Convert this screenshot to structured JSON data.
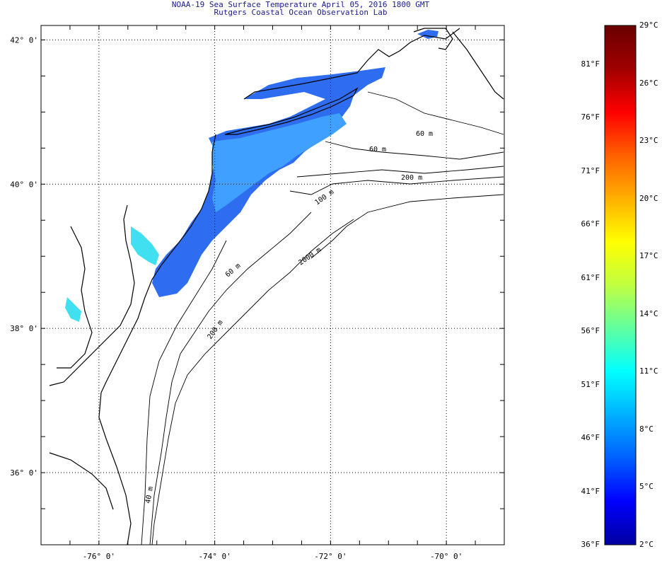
{
  "header": {
    "title": "NOAA-19 Sea Surface Temperature April 05, 2016 1800 GMT",
    "subtitle": "Rutgers Coastal Ocean Observation Lab"
  },
  "map": {
    "lat_labels": [
      "42° 0'",
      "40° 0'",
      "38° 0'",
      "36° 0'"
    ],
    "lat_values": [
      42,
      40,
      38,
      36
    ],
    "lon_labels": [
      "-76° 0'",
      "-74° 0'",
      "-72° 0'",
      "-70° 0'"
    ],
    "lon_values": [
      -76,
      -74,
      -72,
      -70
    ],
    "lat_range": [
      35,
      42.2
    ],
    "lon_range": [
      -77,
      -69
    ],
    "isobath_labels": [
      "60 m",
      "60 m",
      "200 m",
      "100 m",
      "2000 m",
      "60 m",
      "200 m",
      "40 m"
    ],
    "land_color": "#ffffff",
    "coast_color": "#000000",
    "grid": true
  },
  "colorbar": {
    "celsius_labels": [
      "29°C",
      "26°C",
      "23°C",
      "20°C",
      "17°C",
      "14°C",
      "11°C",
      "8°C",
      "5°C",
      "2°C"
    ],
    "fahrenheit_labels": [
      "81°F",
      "76°F",
      "71°F",
      "66°F",
      "61°F",
      "56°F",
      "51°F",
      "46°F",
      "41°F",
      "36°F"
    ],
    "celsius_range": [
      2,
      29
    ],
    "colors": [
      "#0000a0",
      "#0000ff",
      "#0060ff",
      "#00b0ff",
      "#00ffff",
      "#60ffa0",
      "#c0ff40",
      "#ffff00",
      "#ffb000",
      "#ff6000",
      "#ff0000",
      "#a00000",
      "#6a0000"
    ]
  },
  "sst_colors": {
    "shelf": "#2f6df0",
    "nearshore": "#3fa0ff",
    "bay": "#40e0f0"
  }
}
